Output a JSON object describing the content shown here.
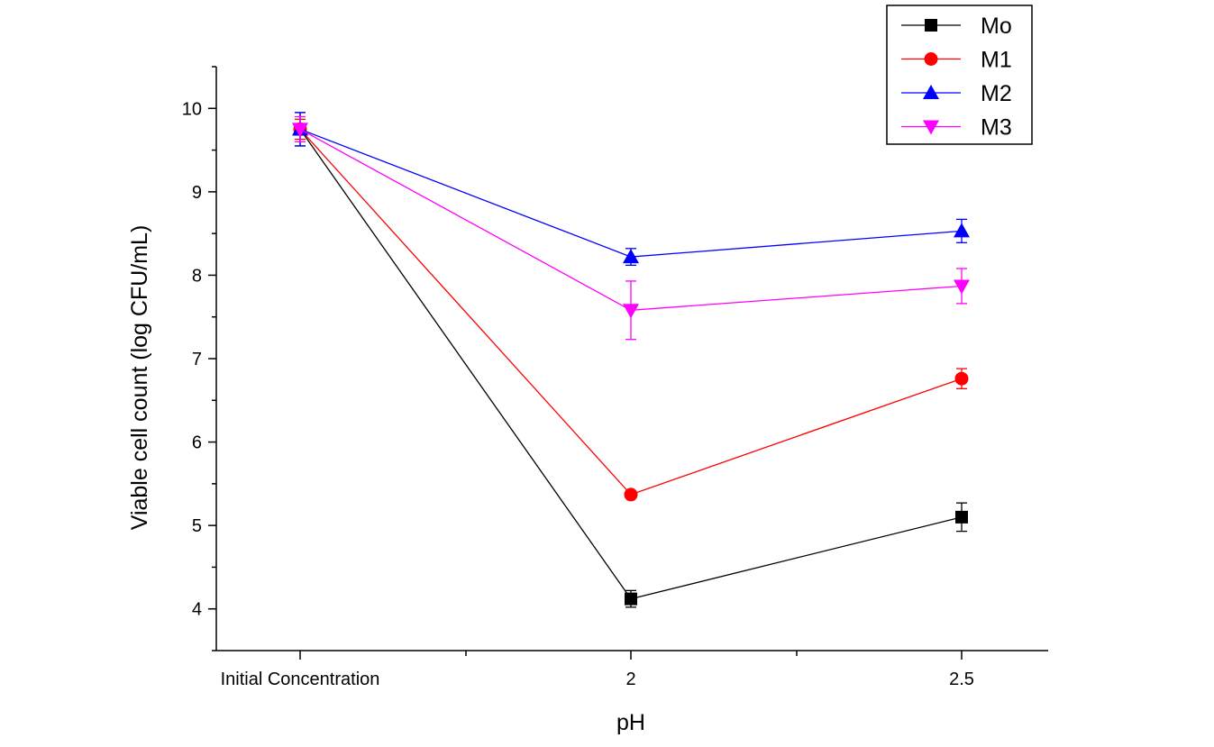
{
  "chart_data": {
    "type": "line",
    "title": "",
    "xlabel": "pH",
    "ylabel": "Viable cell count (log CFU/mL)",
    "categories": [
      "Initial Concentration",
      "2",
      "2.5"
    ],
    "ylim": [
      3.5,
      10.5
    ],
    "yticks": [
      4,
      5,
      6,
      7,
      8,
      9,
      10
    ],
    "legend_position": "top-right",
    "series": [
      {
        "name": "Mo",
        "marker": "square",
        "color": "#000000",
        "values": [
          9.75,
          4.12,
          5.1
        ],
        "errors": [
          0.2,
          0.1,
          0.17
        ]
      },
      {
        "name": "M1",
        "marker": "circle",
        "color": "#ff0000",
        "values": [
          9.75,
          5.37,
          6.76
        ],
        "errors": [
          0.12,
          0.03,
          0.12
        ]
      },
      {
        "name": "M2",
        "marker": "triangle-up",
        "color": "#0000ff",
        "values": [
          9.75,
          8.22,
          8.53
        ],
        "errors": [
          0.2,
          0.1,
          0.14
        ]
      },
      {
        "name": "M3",
        "marker": "triangle-down",
        "color": "#ff00ff",
        "values": [
          9.75,
          7.58,
          7.87
        ],
        "errors": [
          0.15,
          0.35,
          0.21
        ]
      }
    ]
  }
}
